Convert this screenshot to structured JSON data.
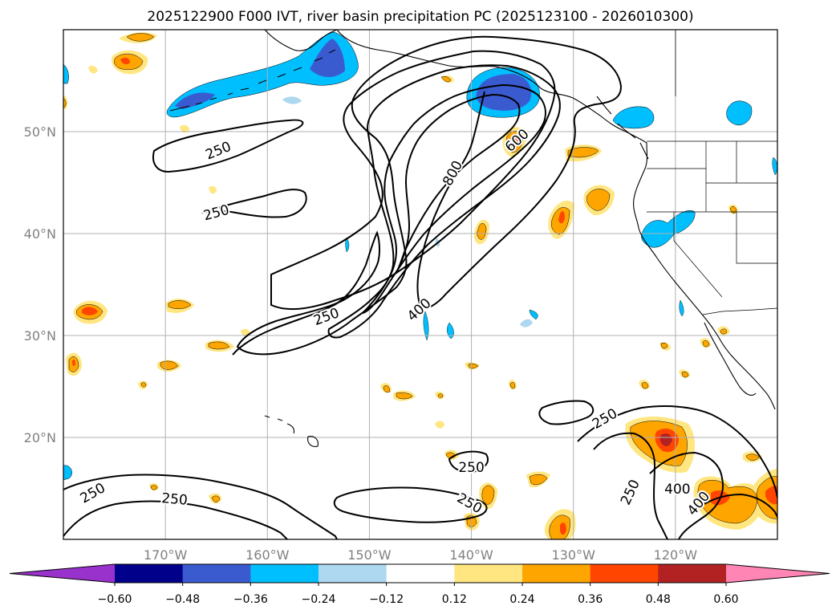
{
  "chart_data": {
    "type": "contour-map",
    "title": "2025122900 F000 IVT, river basin precipitation PC (2025123100 - 2026010300)",
    "lon_range": [
      -180,
      -110
    ],
    "lat_range": [
      10,
      60
    ],
    "grid": true,
    "x_ticks": [
      {
        "lon": -170,
        "label": "170°W"
      },
      {
        "lon": -160,
        "label": "160°W"
      },
      {
        "lon": -150,
        "label": "150°W"
      },
      {
        "lon": -140,
        "label": "140°W"
      },
      {
        "lon": -130,
        "label": "130°W"
      },
      {
        "lon": -120,
        "label": "120°W"
      }
    ],
    "y_ticks": [
      {
        "lat": 50,
        "label": "50°N"
      },
      {
        "lat": 40,
        "label": "40°N"
      },
      {
        "lat": 30,
        "label": "30°N"
      },
      {
        "lat": 20,
        "label": "20°N"
      }
    ],
    "colorbar": {
      "levels": [
        -0.6,
        -0.48,
        -0.36,
        -0.24,
        -0.12,
        0.12,
        0.24,
        0.36,
        0.48,
        0.6
      ],
      "labels": [
        "−0.60",
        "−0.48",
        "−0.36",
        "−0.24",
        "−0.12",
        "0.12",
        "0.24",
        "0.36",
        "0.48",
        "0.60"
      ],
      "colors": [
        "#9932cc",
        "#00008b",
        "#3a5bd0",
        "#00bfff",
        "#add8f0",
        "#ffffff",
        "#ffe680",
        "#ffa500",
        "#ff4500",
        "#b22222",
        "#ff85b4"
      ],
      "extend": "both"
    },
    "ivt_contour_levels": [
      250,
      400,
      600,
      800
    ],
    "contour_labels": [
      {
        "text": "250",
        "lon": -164.8,
        "lat": 48.1,
        "angle": -22
      },
      {
        "text": "250",
        "lon": -165.0,
        "lat": 42.0,
        "angle": -15
      },
      {
        "text": "250",
        "lon": -154.2,
        "lat": 31.8,
        "angle": -20
      },
      {
        "text": "400",
        "lon": -145.1,
        "lat": 32.5,
        "angle": -42
      },
      {
        "text": "800",
        "lon": -141.8,
        "lat": 45.9,
        "angle": -62
      },
      {
        "text": "600",
        "lon": -135.5,
        "lat": 49.1,
        "angle": -42
      },
      {
        "text": "250",
        "lon": -126.9,
        "lat": 21.8,
        "angle": -30
      },
      {
        "text": "250",
        "lon": -140.0,
        "lat": 17.0,
        "angle": 0
      },
      {
        "text": "250",
        "lon": -140.2,
        "lat": 13.5,
        "angle": 30
      },
      {
        "text": "250",
        "lon": -177.1,
        "lat": 14.5,
        "angle": -30
      },
      {
        "text": "250",
        "lon": -169.1,
        "lat": 13.9,
        "angle": 5
      },
      {
        "text": "400",
        "lon": -119.8,
        "lat": 14.9,
        "angle": 0
      },
      {
        "text": "250",
        "lon": -124.4,
        "lat": 14.6,
        "angle": -65
      },
      {
        "text": "400",
        "lon": -117.7,
        "lat": 13.5,
        "angle": -50
      }
    ]
  }
}
